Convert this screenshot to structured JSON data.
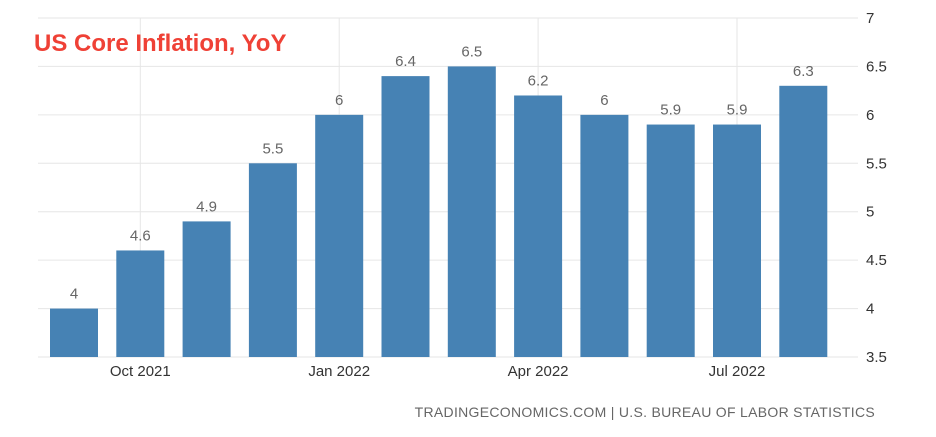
{
  "chart_data": {
    "type": "bar",
    "title": "US Core Inflation, YoY",
    "source": "TRADINGECONOMICS.COM | U.S. BUREAU OF LABOR STATISTICS",
    "categories": [
      "Sep 2021",
      "Oct 2021",
      "Nov 2021",
      "Dec 2021",
      "Jan 2022",
      "Feb 2022",
      "Mar 2022",
      "Apr 2022",
      "May 2022",
      "Jun 2022",
      "Jul 2022",
      "Aug 2022"
    ],
    "values": [
      4,
      4.6,
      4.9,
      5.5,
      6,
      6.4,
      6.5,
      6.2,
      6,
      5.9,
      5.9,
      6.3
    ],
    "x_tick_labels": [
      "Oct 2021",
      "Jan 2022",
      "Apr 2022",
      "Jul 2022"
    ],
    "y_ticks": [
      "3.5",
      "4",
      "4.5",
      "5",
      "5.5",
      "6",
      "6.5",
      "7"
    ],
    "ylim": [
      3.5,
      7
    ],
    "y_axis_side": "right",
    "grid": true,
    "colors": {
      "bar": "#4682b4",
      "title": "#ef4136",
      "grid": "#e6e6e6"
    }
  }
}
